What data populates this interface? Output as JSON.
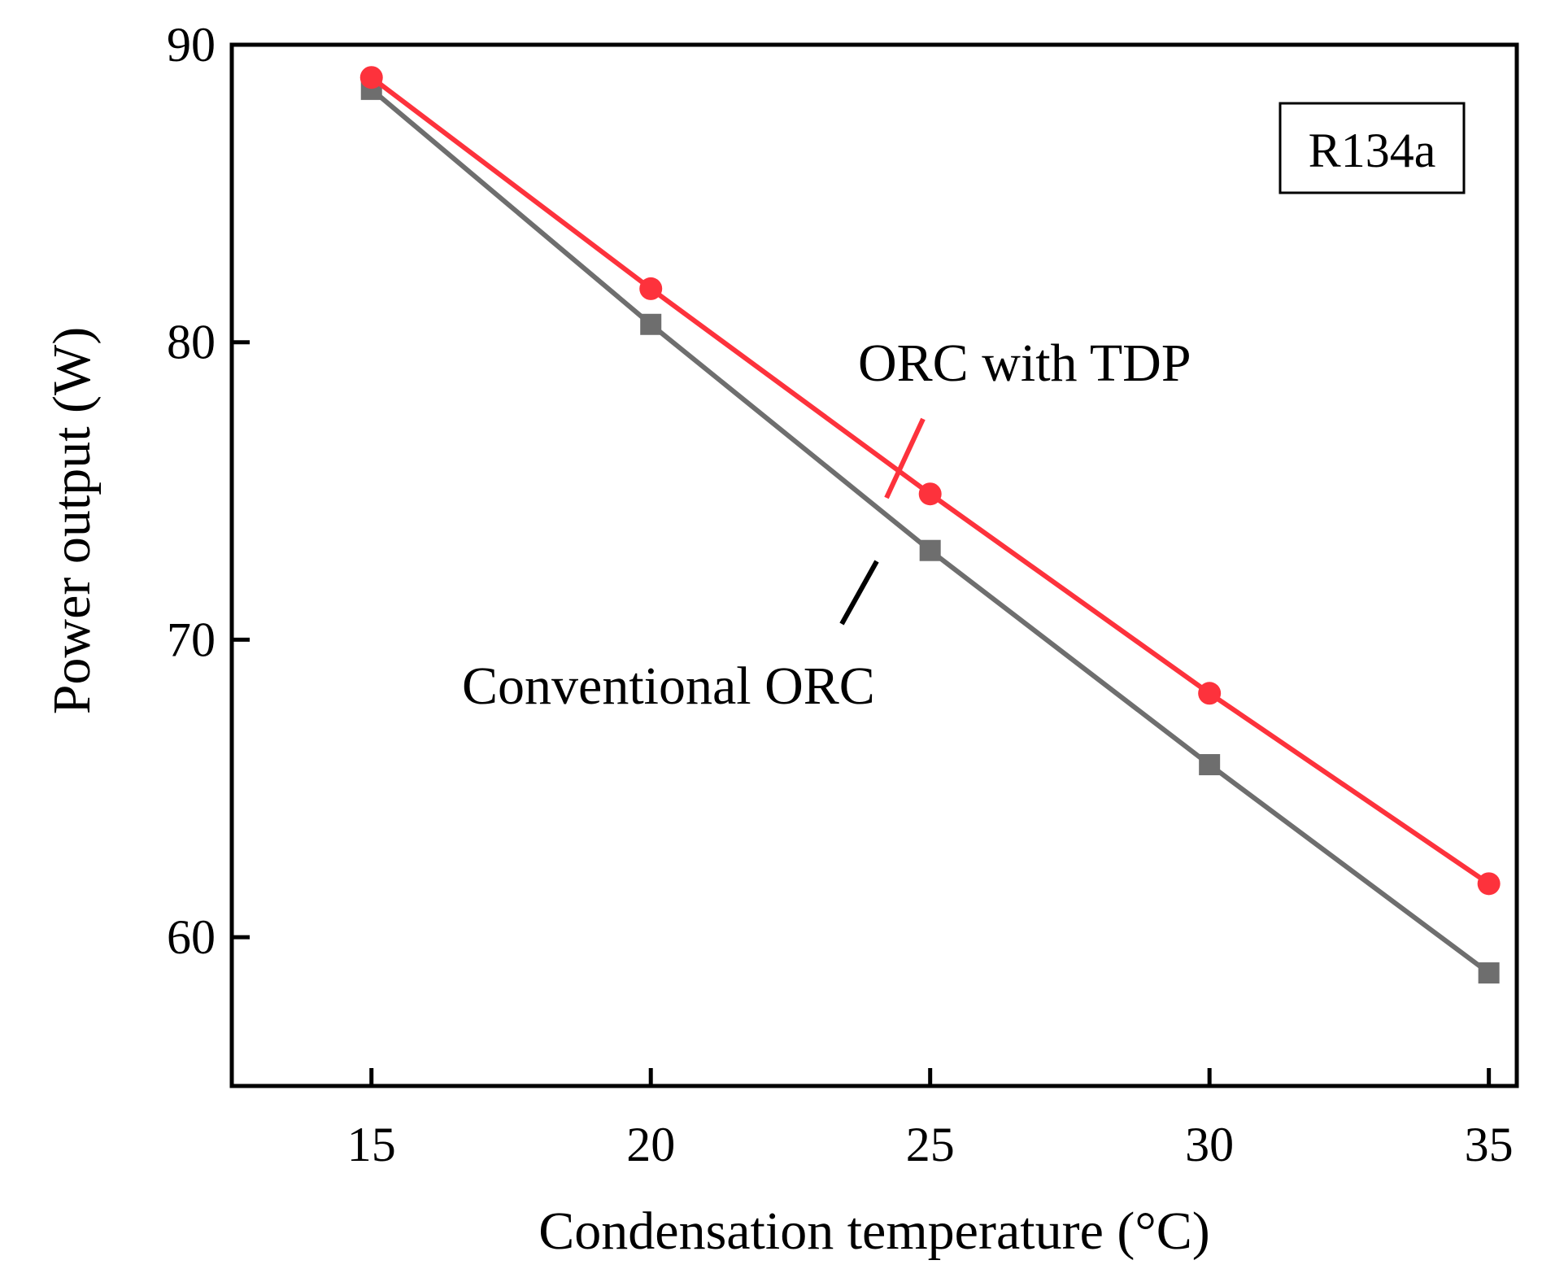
{
  "chart_data": {
    "type": "line",
    "title": "",
    "xlabel": "Condensation temperature (°C)",
    "ylabel": "Power output (W)",
    "x": [
      15,
      20,
      25,
      30,
      35
    ],
    "xticks": [
      "15",
      "20",
      "25",
      "30",
      "35"
    ],
    "yticks": [
      "60",
      "70",
      "80",
      "90"
    ],
    "xlim": [
      12.5,
      35.5
    ],
    "ylim": [
      55,
      90
    ],
    "grid": false,
    "series": [
      {
        "name": "Conventional ORC",
        "color": "#6e6e6e",
        "marker": "square",
        "values": [
          88.5,
          80.6,
          73.0,
          65.8,
          58.8
        ]
      },
      {
        "name": "ORC with TDP",
        "color": "#fd323c",
        "marker": "circle",
        "values": [
          88.9,
          81.8,
          74.9,
          68.2,
          61.8
        ]
      }
    ],
    "annotations": {
      "badge": "R134a",
      "tdp_label": "ORC with TDP",
      "conventional_label": "Conventional ORC"
    }
  }
}
